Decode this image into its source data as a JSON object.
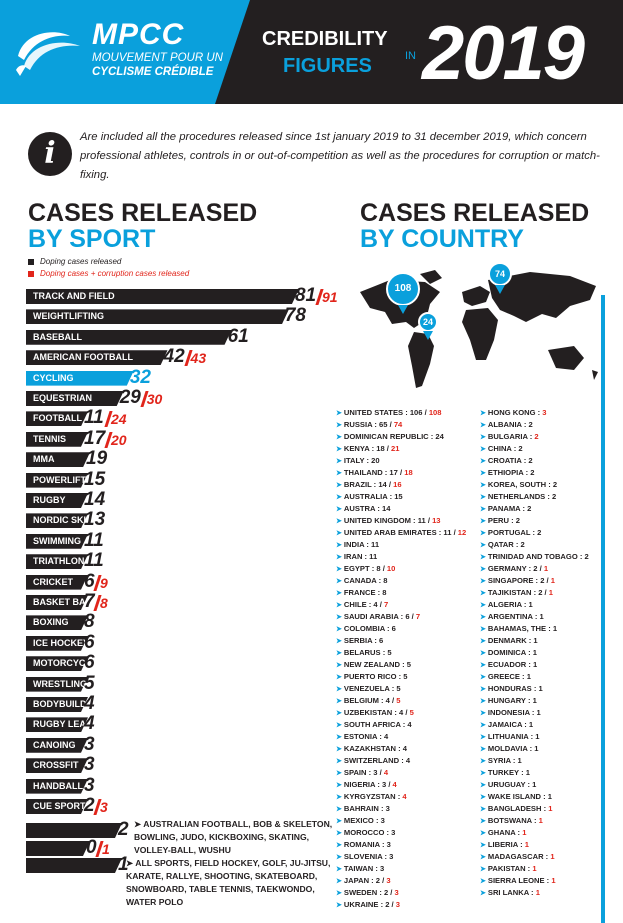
{
  "header": {
    "logo_name": "MPCC",
    "logo_tagline1": "MOUVEMENT POUR UN",
    "logo_tagline2": "CYCLISME CRÉDIBLE",
    "title_line1": "CREDIBILITY",
    "title_line2": "FIGURES",
    "title_in": "IN",
    "title_year": "2019"
  },
  "info": {
    "icon": "info-icon",
    "text": "Are included all the procedures released since 1st january 2019 to 31 december 2019, which concern professional athletes, controls in or out-of-competition as well as the procedures for corruption or match-fixing."
  },
  "sport_section": {
    "title1": "CASES RELEASED",
    "title2": "BY SPORT"
  },
  "country_section": {
    "title1": "CASES RELEASED",
    "title2": "BY COUNTRY"
  },
  "colors": {
    "dark": "#231f20",
    "blue": "#0aa0dc",
    "red": "#e1251b"
  },
  "chart_data": {
    "type": "bar",
    "orientation": "horizontal",
    "legend": [
      {
        "label": "Doping cases released",
        "color": "#231f20"
      },
      {
        "label": "Doping cases + corruption cases released",
        "color": "#e1251b"
      }
    ],
    "categories": [
      "TRACK AND FIELD",
      "WEIGHTLIFTING",
      "BASEBALL",
      "AMERICAN FOOTBALL",
      "CYCLING",
      "EQUESTRIAN",
      "FOOTBALL",
      "TENNIS",
      "MMA",
      "POWERLIFTING",
      "RUGBY",
      "NORDIC SKIING",
      "SWIMMING",
      "TRIATHLON",
      "CRICKET",
      "BASKET BALL",
      "BOXING",
      "ICE HOCKEY",
      "MOTORCYCLING",
      "WRESTLING",
      "BODYBUILDING",
      "RUGBY LEAGUE",
      "CANOING",
      "CROSSFIT",
      "HANDBALL",
      "CUE SPORTS",
      "",
      "",
      ""
    ],
    "series": [
      {
        "name": "Doping cases released",
        "values": [
          81,
          78,
          61,
          42,
          32,
          29,
          11,
          17,
          19,
          15,
          14,
          13,
          11,
          11,
          6,
          7,
          8,
          6,
          6,
          5,
          4,
          4,
          3,
          3,
          3,
          2,
          2,
          0,
          1
        ]
      },
      {
        "name": "Doping cases + corruption cases released",
        "values": [
          91,
          null,
          null,
          43,
          null,
          30,
          24,
          20,
          null,
          null,
          null,
          null,
          null,
          null,
          9,
          8,
          null,
          null,
          null,
          null,
          null,
          null,
          null,
          null,
          null,
          3,
          null,
          1,
          null
        ]
      }
    ],
    "group_labels": [
      {
        "value": 2,
        "sports": "AUSTRALIAN FOOTBALL, BOB & SKELETON, BOWLING, JUDO, KICKBOXING, SKATING, VOLLEY-BALL, WUSHU"
      },
      {
        "value": 1,
        "sports": "ALL SPORTS, FIELD HOCKEY, GOLF, JU-JITSU, KARATE, RALLYE, SHOOTING, SKATEBOARD, SNOWBOARD, TABLE TENNIS, TAEKWONDO, WATER POLO"
      }
    ],
    "map_markers": [
      {
        "country": "United States",
        "value": "108"
      },
      {
        "country": "Russia",
        "value": "74"
      },
      {
        "country": "Dominican Republic",
        "value": "24"
      }
    ],
    "countries_col1": [
      [
        "UNITED STATES : 106 / ",
        "108"
      ],
      [
        "RUSSIA : 65 / ",
        "74"
      ],
      [
        "DOMINICAN REPUBLIC : 24",
        ""
      ],
      [
        "KENYA : 18 / ",
        "21"
      ],
      [
        "ITALY : 20",
        ""
      ],
      [
        "THAILAND : 17 / ",
        "18"
      ],
      [
        "BRAZIL : 14 / ",
        "16"
      ],
      [
        "AUSTRALIA : 15",
        ""
      ],
      [
        "AUSTRA : 14",
        ""
      ],
      [
        "UNITED KINGDOM : 11 / ",
        "13"
      ],
      [
        "UNITED ARAB EMIRATES : 11 / ",
        "12"
      ],
      [
        "INDIA : 11",
        ""
      ],
      [
        "IRAN : 11",
        ""
      ],
      [
        "EGYPT : 8 / ",
        "10"
      ],
      [
        "CANADA : 8",
        ""
      ],
      [
        "FRANCE : 8",
        ""
      ],
      [
        "CHILE : 4 / ",
        "7"
      ],
      [
        "SAUDI ARABIA : 6 / ",
        "7"
      ],
      [
        "COLOMBIA : 6",
        ""
      ],
      [
        "SERBIA : 6",
        ""
      ],
      [
        "BELARUS : 5",
        ""
      ],
      [
        "NEW ZEALAND : 5",
        ""
      ],
      [
        "PUERTO RICO : 5",
        ""
      ],
      [
        "VENEZUELA : 5",
        ""
      ],
      [
        "BELGIUM : 4 / ",
        "5"
      ],
      [
        "UZBEKISTAN : 4 / ",
        "5"
      ],
      [
        "SOUTH AFRICA : 4",
        ""
      ],
      [
        "ESTONIA : 4",
        ""
      ],
      [
        "KAZAKHSTAN : 4",
        ""
      ],
      [
        "SWITZERLAND : 4",
        ""
      ],
      [
        "SPAIN : 3 / ",
        "4"
      ],
      [
        "NIGERIA : 3 / ",
        "4"
      ],
      [
        "KYRGYZSTAN : ",
        "4"
      ],
      [
        "BAHRAIN : 3",
        ""
      ],
      [
        "MEXICO : 3",
        ""
      ],
      [
        "MOROCCO : 3",
        ""
      ],
      [
        "ROMANIA : 3",
        ""
      ],
      [
        "SLOVENIA : 3",
        ""
      ],
      [
        "TAIWAN : 3",
        ""
      ],
      [
        "JAPAN : 2 / ",
        "3"
      ],
      [
        "SWEDEN : 2 / ",
        "3"
      ],
      [
        "UKRAINE : 2 / ",
        "3"
      ]
    ],
    "countries_col2": [
      [
        "HONG KONG : ",
        "3"
      ],
      [
        "ALBANIA : 2",
        ""
      ],
      [
        "BULGARIA : ",
        "2"
      ],
      [
        "CHINA : 2",
        ""
      ],
      [
        "CROATIA : 2",
        ""
      ],
      [
        "ETHIOPIA : 2",
        ""
      ],
      [
        "KOREA, SOUTH : 2",
        ""
      ],
      [
        "NETHERLANDS : 2",
        ""
      ],
      [
        "PANAMA : 2",
        ""
      ],
      [
        "PERU : 2",
        ""
      ],
      [
        "PORTUGAL : 2",
        ""
      ],
      [
        "QATAR : 2",
        ""
      ],
      [
        "TRINIDAD AND TOBAGO : 2",
        ""
      ],
      [
        "GERMANY : 2 / ",
        "1"
      ],
      [
        "SINGAPORE : 2 / ",
        "1"
      ],
      [
        "TAJIKISTAN : 2 / ",
        "1"
      ],
      [
        "ALGERIA : 1",
        ""
      ],
      [
        "ARGENTINA : 1",
        ""
      ],
      [
        "BAHAMAS, THE : 1",
        ""
      ],
      [
        "DENMARK : 1",
        ""
      ],
      [
        "DOMINICA : 1",
        ""
      ],
      [
        "ECUADOR : 1",
        ""
      ],
      [
        "GREECE : 1",
        ""
      ],
      [
        "HONDURAS : 1",
        ""
      ],
      [
        "HUNGARY : 1",
        ""
      ],
      [
        "INDONESIA : 1",
        ""
      ],
      [
        "JAMAICA : 1",
        ""
      ],
      [
        "LITHUANIA : 1",
        ""
      ],
      [
        "MOLDAVIA : 1",
        ""
      ],
      [
        "SYRIA : 1",
        ""
      ],
      [
        "TURKEY : 1",
        ""
      ],
      [
        "URUGUAY : 1",
        ""
      ],
      [
        "WAKE ISLAND : 1",
        ""
      ],
      [
        "BANGLADESH : ",
        "1"
      ],
      [
        "BOTSWANA : ",
        "1"
      ],
      [
        "GHANA : ",
        "1"
      ],
      [
        "LIBERIA : ",
        "1"
      ],
      [
        "MADAGASCAR : ",
        "1"
      ],
      [
        "PAKISTAN : ",
        "1"
      ],
      [
        "SIERRA LEONE : ",
        "1"
      ],
      [
        "SRI LANKA : ",
        "1"
      ]
    ]
  }
}
